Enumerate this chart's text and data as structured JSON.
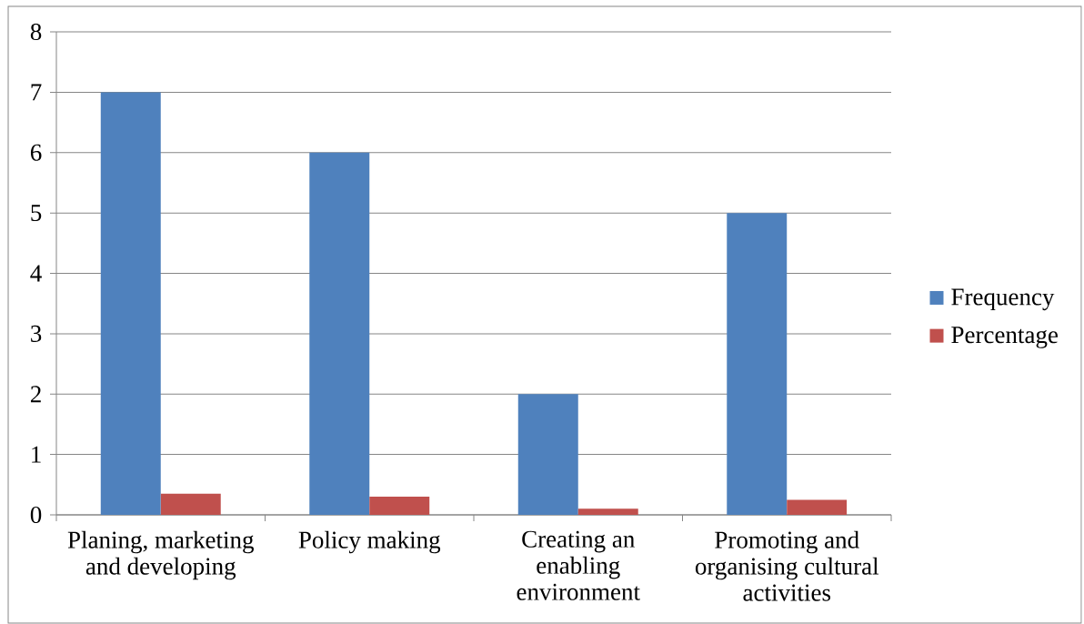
{
  "chart_data": {
    "type": "bar",
    "categories": [
      "Planing, marketing and developing",
      "Policy making",
      "Creating an enabling environment",
      "Promoting and organising cultural activities"
    ],
    "series": [
      {
        "name": "Frequency",
        "color": "#4f81bd",
        "values": [
          7,
          6,
          2,
          5
        ]
      },
      {
        "name": "Percentage",
        "color": "#c0504d",
        "values": [
          0.35,
          0.3,
          0.1,
          0.25
        ]
      }
    ],
    "ylim": [
      0,
      8
    ],
    "yticks": [
      0,
      1,
      2,
      3,
      4,
      5,
      6,
      7,
      8
    ],
    "grid": "y",
    "legend": "right"
  }
}
